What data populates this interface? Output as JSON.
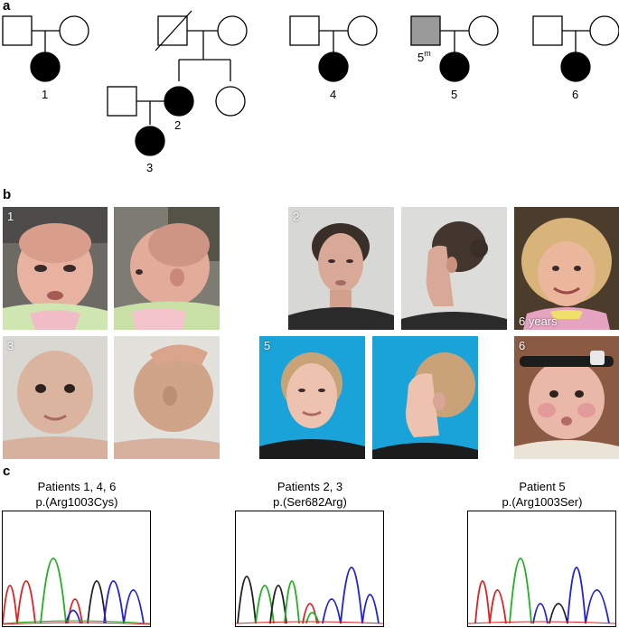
{
  "panels": {
    "a": "a",
    "b": "b",
    "c": "c"
  },
  "pedigree": {
    "labels": [
      "1",
      "2",
      "3",
      "4",
      "5",
      "6"
    ],
    "carrier_label": "5",
    "carrier_superscript": "m"
  },
  "photos": {
    "p1_number": "1",
    "p2_number": "2",
    "p3_number": "3",
    "p5_number": "5",
    "p6_number": "6",
    "p2_child_caption": "6 years"
  },
  "sequencing": [
    {
      "patients": "Patients 1, 4, 6",
      "variant": "p.(Arg1003Cys)"
    },
    {
      "patients": "Patients 2, 3",
      "variant": "p.(Ser682Arg)"
    },
    {
      "patients": "Patient 5",
      "variant": "p.(Arg1003Ser)"
    }
  ],
  "colors": {
    "trace_red": "#e02020",
    "trace_green": "#20b020",
    "trace_blue": "#2020e0",
    "trace_black": "#222222",
    "affected_fill": "#000000",
    "carrier_fill": "#9a9a9a",
    "photo_bg_blue": "#1aa3d8"
  }
}
